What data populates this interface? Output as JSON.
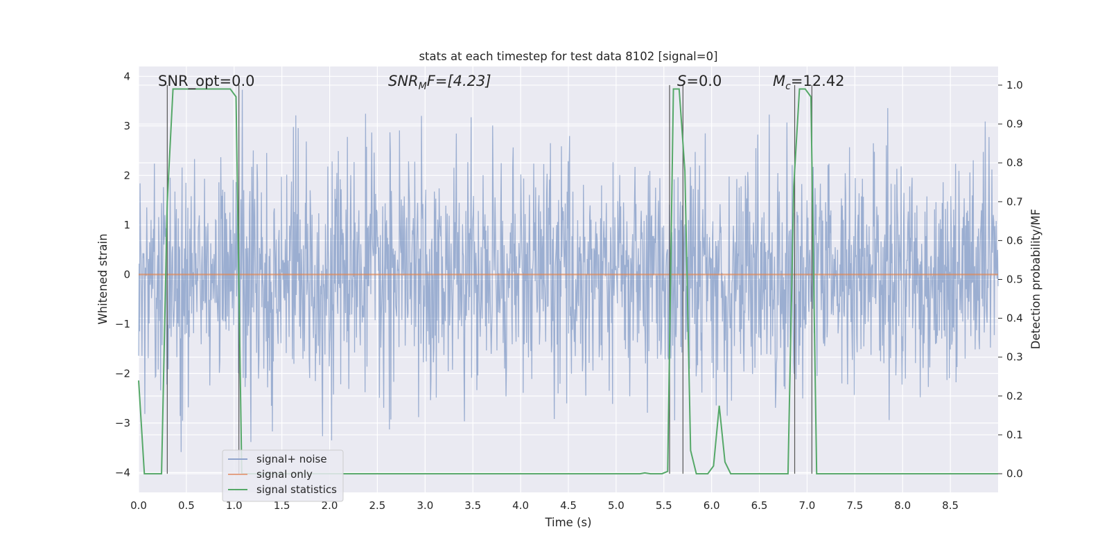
{
  "chart_data": {
    "type": "line",
    "title": "stats at each timestep for test data 8102 [signal=0]",
    "xlabel": "Time (s)",
    "ylabel": "Whitened strain",
    "ylabel_right": "Detection probability/MF",
    "xlim": [
      0.0,
      9.0
    ],
    "ylim": [
      -4.4,
      4.2
    ],
    "ylim_right": [
      -0.048,
      1.048
    ],
    "x_ticks": [
      "0.0",
      "0.5",
      "1.0",
      "1.5",
      "2.0",
      "2.5",
      "3.0",
      "3.5",
      "4.0",
      "4.5",
      "5.0",
      "5.5",
      "6.0",
      "6.5",
      "7.0",
      "7.5",
      "8.0",
      "8.5"
    ],
    "y_ticks": [
      "4",
      "3",
      "2",
      "1",
      "0",
      "−1",
      "−2",
      "−3",
      "−4"
    ],
    "y_ticks_right": [
      "1.0",
      "0.9",
      "0.8",
      "0.7",
      "0.6",
      "0.5",
      "0.4",
      "0.3",
      "0.2",
      "0.1",
      "0.0"
    ],
    "grid": true,
    "annotations": {
      "snr_opt": "SNR_opt=0.0",
      "snr_mf_main": "SNR",
      "snr_mf_sub": "M",
      "snr_mf_tail": "F=[4.23]",
      "s": "S",
      "s_tail": "=0.0",
      "mc_main": "M",
      "mc_sub": "c",
      "mc_tail": "=12.42"
    },
    "legend": {
      "position": "lower-left",
      "entries": [
        "signal+ noise",
        "signal only",
        "signal statistics"
      ]
    },
    "series": [
      {
        "name": "signal+ noise",
        "axis": "left",
        "color": "#4c72b0",
        "description": "random gaussian-like whitened strain, amplitude about 1.5 with spikes to ±4",
        "sample_count": 1800,
        "noise_range": [
          -4.0,
          3.8
        ]
      },
      {
        "name": "signal only",
        "axis": "left",
        "color": "#dd8452",
        "x": [
          0.0,
          9.0
        ],
        "y": [
          0.0,
          0.0
        ]
      },
      {
        "name": "signal statistics",
        "axis": "right",
        "color": "#55a868",
        "x": [
          0.0,
          0.06,
          0.12,
          0.18,
          0.24,
          0.3,
          0.36,
          0.42,
          0.48,
          0.54,
          0.6,
          0.66,
          0.72,
          0.78,
          0.84,
          0.9,
          0.96,
          1.02,
          1.08,
          1.14,
          1.2,
          1.3,
          1.5,
          2.0,
          3.0,
          4.0,
          5.0,
          5.25,
          5.3,
          5.36,
          5.42,
          5.48,
          5.54,
          5.6,
          5.66,
          5.72,
          5.78,
          5.84,
          5.9,
          5.96,
          6.02,
          6.08,
          6.14,
          6.2,
          6.3,
          6.5,
          6.8,
          6.86,
          6.92,
          6.98,
          7.04,
          7.1,
          7.16,
          7.3,
          8.0,
          9.0
        ],
        "y": [
          0.24,
          0.0,
          0.0,
          0.0,
          0.0,
          0.7,
          0.99,
          0.99,
          0.99,
          0.99,
          0.99,
          0.99,
          0.99,
          0.99,
          0.99,
          0.99,
          0.99,
          0.97,
          0.0,
          0.0,
          0.0,
          0.0,
          0.0,
          0.0,
          0.0,
          0.0,
          0.0,
          0.0,
          0.002,
          0.0,
          0.0,
          0.0,
          0.006,
          0.99,
          0.99,
          0.78,
          0.06,
          0.0,
          0.0,
          0.0,
          0.02,
          0.175,
          0.03,
          0.0,
          0.0,
          0.0,
          0.0,
          0.74,
          0.99,
          0.99,
          0.97,
          0.0,
          0.0,
          0.0,
          0.0,
          0.0
        ]
      }
    ],
    "markers": {
      "color": "#555555",
      "x": [
        0.3,
        1.05,
        5.56,
        5.7,
        6.87,
        7.05
      ],
      "top": 1.0
    }
  }
}
